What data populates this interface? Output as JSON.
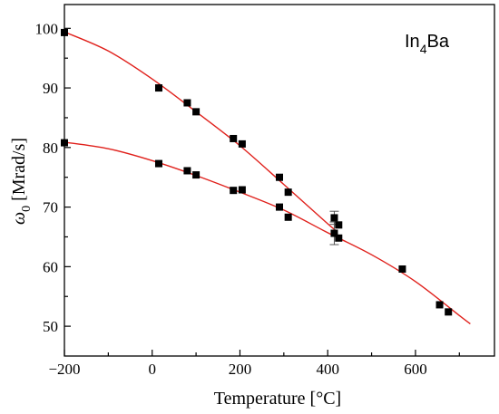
{
  "chart_data": {
    "type": "scatter",
    "title": "",
    "annotation": {
      "text": "In",
      "sub": "4",
      "suffix": "Ba"
    },
    "xlabel": "Temperature [°C]",
    "ylabel": {
      "symbol": "ω",
      "sub": "0",
      "suffix": " [Mrad/s]"
    },
    "xlim": [
      -200,
      780
    ],
    "ylim": [
      45,
      104
    ],
    "xticks": [
      -200,
      0,
      200,
      400,
      600
    ],
    "yticks": [
      50,
      60,
      70,
      80,
      90,
      100
    ],
    "xticks_minor": [
      -100,
      100,
      300,
      500,
      700
    ],
    "yticks_minor": [
      55,
      65,
      75,
      85,
      95
    ],
    "colors": {
      "points": "#000000",
      "fit": "#e0201b",
      "axes": "#000000"
    },
    "marker": "filled-square",
    "series": [
      {
        "points": [
          {
            "x": -200,
            "y": 99.3
          },
          {
            "x": 15,
            "y": 90.0
          },
          {
            "x": 80,
            "y": 87.5
          },
          {
            "x": 100,
            "y": 86.0
          },
          {
            "x": 185,
            "y": 81.5
          },
          {
            "x": 205,
            "y": 80.6
          },
          {
            "x": 290,
            "y": 75.0
          },
          {
            "x": 310,
            "y": 72.5
          },
          {
            "x": 415,
            "y": 68.2,
            "err": 1.1
          },
          {
            "x": 425,
            "y": 67.0
          }
        ],
        "fit": [
          [
            -200,
            99.4
          ],
          [
            -100,
            96.2
          ],
          [
            0,
            91.5
          ],
          [
            100,
            86.0
          ],
          [
            200,
            80.3
          ],
          [
            300,
            73.8
          ],
          [
            400,
            67.2
          ],
          [
            420,
            66.0
          ]
        ]
      },
      {
        "points": [
          {
            "x": -200,
            "y": 80.8
          },
          {
            "x": 15,
            "y": 77.3
          },
          {
            "x": 80,
            "y": 76.1
          },
          {
            "x": 100,
            "y": 75.4
          },
          {
            "x": 185,
            "y": 72.8
          },
          {
            "x": 205,
            "y": 72.9
          },
          {
            "x": 290,
            "y": 70.0
          },
          {
            "x": 310,
            "y": 68.3
          },
          {
            "x": 415,
            "y": 65.6,
            "err": 1.9
          },
          {
            "x": 425,
            "y": 64.8
          },
          {
            "x": 570,
            "y": 59.6
          },
          {
            "x": 655,
            "y": 53.6
          },
          {
            "x": 675,
            "y": 52.4
          }
        ],
        "fit": [
          [
            -200,
            80.9
          ],
          [
            -100,
            79.8
          ],
          [
            0,
            77.8
          ],
          [
            100,
            75.3
          ],
          [
            200,
            72.5
          ],
          [
            300,
            69.5
          ],
          [
            400,
            65.7
          ],
          [
            500,
            62.0
          ],
          [
            600,
            57.5
          ],
          [
            700,
            51.8
          ],
          [
            725,
            50.4
          ]
        ]
      }
    ]
  }
}
